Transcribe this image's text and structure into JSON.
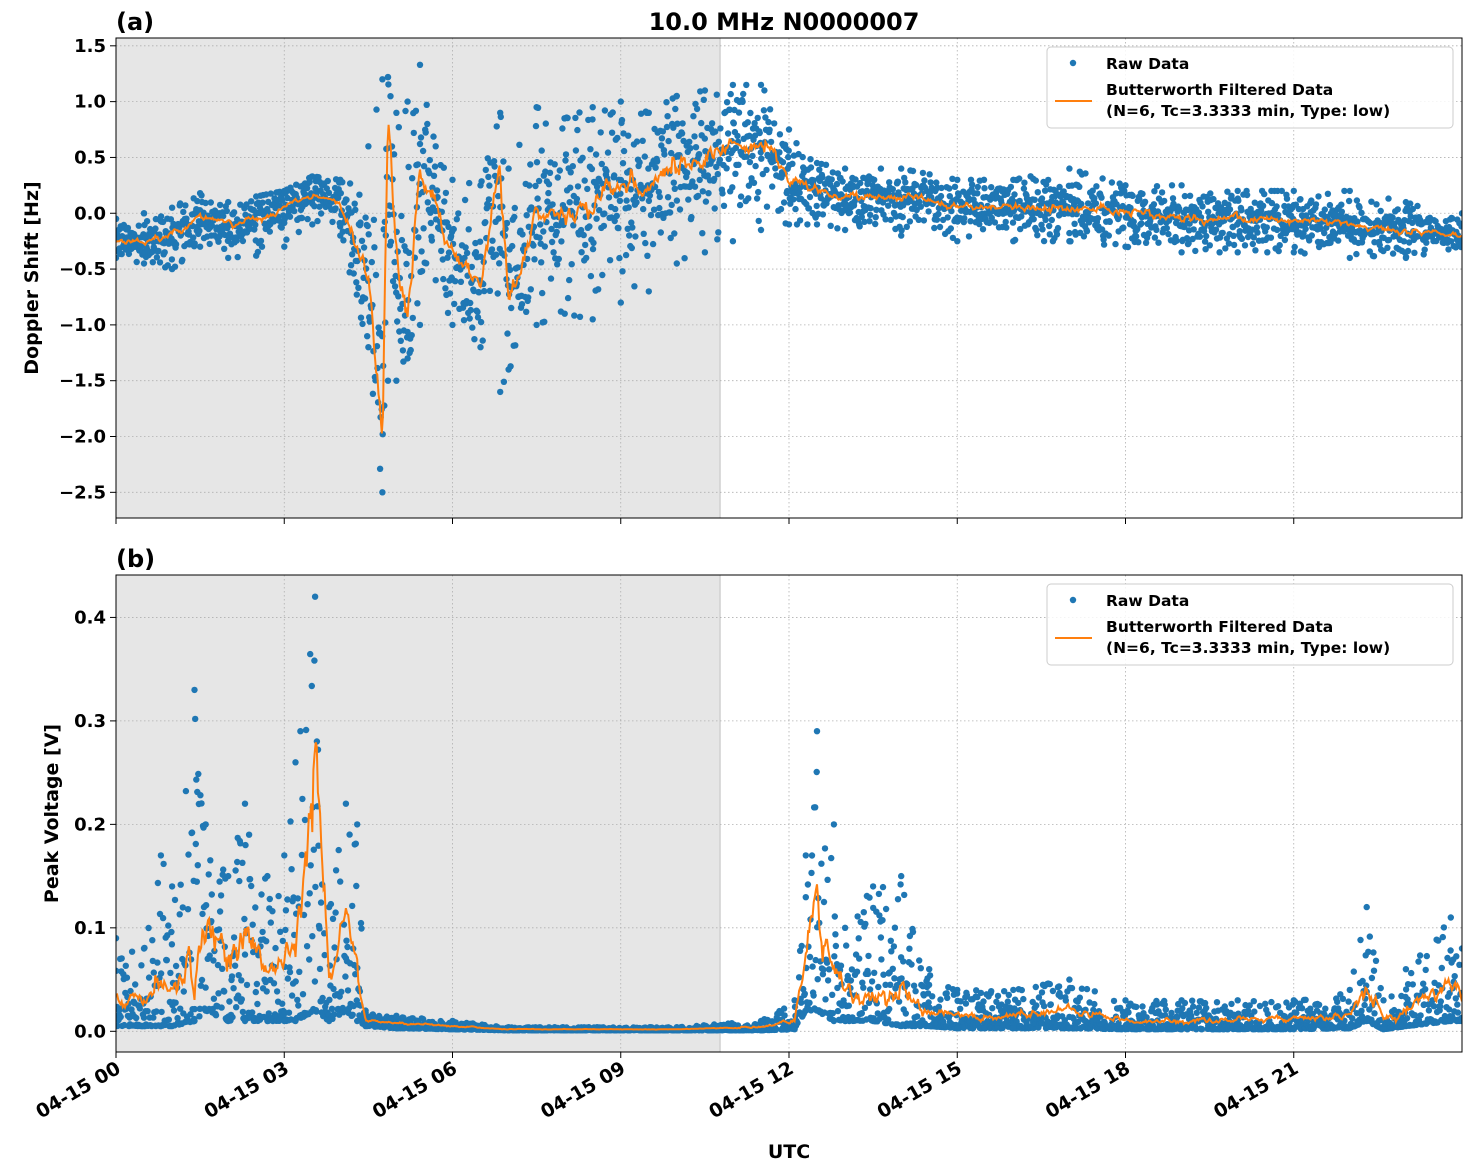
{
  "chart_data": {
    "type": "scatter",
    "title": "10.0 MHz N0000007",
    "xlabel": "UTC",
    "x_unit": "hours since 04-15 00 UTC",
    "xlim": [
      0,
      24
    ],
    "x_ticks": [
      0,
      3,
      6,
      9,
      12,
      15,
      18,
      21
    ],
    "x_tick_labels": [
      "04-15 00",
      "04-15 03",
      "04-15 06",
      "04-15 09",
      "04-15 12",
      "04-15 15",
      "04-15 18",
      "04-15 21"
    ],
    "shaded_interval_hours": [
      0,
      10.77
    ],
    "colors": {
      "raw": "#1f77b4",
      "filtered": "#ff7f0e",
      "shade": "#e6e6e6"
    },
    "panels": [
      {
        "label": "(a)",
        "ylabel": "Doppler Shift [Hz]",
        "ylim": [
          -2.73,
          1.57
        ],
        "y_ticks": [
          1.5,
          1.0,
          0.5,
          0.0,
          -0.5,
          -1.0,
          -1.5,
          -2.0,
          -2.5
        ],
        "y_tick_labels": [
          "1.5",
          "1.0",
          "0.5",
          "0.0",
          "−0.5",
          "−1.0",
          "−1.5",
          "−2.0",
          "−2.5"
        ],
        "legend": {
          "placement": "top-right",
          "raw": "Raw Data",
          "filtered_line1": "Butterworth Filtered Data",
          "filtered_line2": "(N=6, Tc=3.3333 min, Type: low)"
        },
        "series_columns": [
          "hour",
          "filtered",
          "raw_min",
          "raw_max"
        ],
        "series": [
          [
            0,
            -0.25,
            -0.4,
            -0.05
          ],
          [
            0.5,
            -0.25,
            -0.45,
            0.0
          ],
          [
            1.0,
            -0.2,
            -0.5,
            0.05
          ],
          [
            1.5,
            -0.05,
            -0.3,
            0.18
          ],
          [
            2.0,
            -0.1,
            -0.4,
            0.1
          ],
          [
            2.5,
            -0.05,
            -0.38,
            0.15
          ],
          [
            3.0,
            0.05,
            -0.3,
            0.2
          ],
          [
            3.5,
            0.18,
            -0.1,
            0.33
          ],
          [
            4.0,
            0.1,
            -0.2,
            0.3
          ],
          [
            4.5,
            -0.6,
            -1.2,
            0.6
          ],
          [
            4.75,
            -1.9,
            -2.5,
            1.2
          ],
          [
            4.85,
            0.9,
            -1.5,
            1.22
          ],
          [
            5.0,
            -0.5,
            -1.5,
            0.9
          ],
          [
            5.2,
            -0.9,
            -1.3,
            1.0
          ],
          [
            5.42,
            0.3,
            -1.0,
            1.33
          ],
          [
            5.7,
            0.1,
            -0.6,
            0.6
          ],
          [
            6.0,
            -0.4,
            -1.0,
            0.3
          ],
          [
            6.5,
            -0.6,
            -1.2,
            0.25
          ],
          [
            6.85,
            0.4,
            -1.6,
            0.9
          ],
          [
            7.0,
            -0.8,
            -1.4,
            0.4
          ],
          [
            7.5,
            0.0,
            -1.0,
            0.95
          ],
          [
            8.0,
            0.0,
            -0.9,
            0.85
          ],
          [
            8.5,
            0.05,
            -0.95,
            0.95
          ],
          [
            9.0,
            0.25,
            -0.8,
            1.0
          ],
          [
            9.5,
            0.2,
            -0.7,
            0.9
          ],
          [
            10.0,
            0.45,
            -0.45,
            1.05
          ],
          [
            10.5,
            0.5,
            -0.35,
            1.1
          ],
          [
            11.0,
            0.6,
            -0.25,
            1.15
          ],
          [
            11.5,
            0.65,
            -0.15,
            1.15
          ],
          [
            12.0,
            0.3,
            -0.1,
            0.75
          ],
          [
            12.5,
            0.2,
            -0.1,
            0.45
          ],
          [
            13.0,
            0.15,
            -0.15,
            0.4
          ],
          [
            14.0,
            0.15,
            -0.2,
            0.4
          ],
          [
            15.0,
            0.05,
            -0.25,
            0.3
          ],
          [
            16.0,
            0.05,
            -0.25,
            0.3
          ],
          [
            17.0,
            0.05,
            -0.25,
            0.4
          ],
          [
            18.0,
            0.0,
            -0.3,
            0.25
          ],
          [
            19.0,
            -0.05,
            -0.35,
            0.25
          ],
          [
            20.0,
            -0.05,
            -0.35,
            0.2
          ],
          [
            21.0,
            -0.05,
            -0.35,
            0.2
          ],
          [
            22.0,
            -0.1,
            -0.4,
            0.2
          ],
          [
            23.0,
            -0.15,
            -0.4,
            0.1
          ],
          [
            24.0,
            -0.2,
            -0.3,
            0.0
          ]
        ]
      },
      {
        "label": "(b)",
        "ylabel": "Peak Voltage [V]",
        "ylim": [
          -0.02,
          0.441
        ],
        "y_ticks": [
          0.4,
          0.3,
          0.2,
          0.1,
          0.0
        ],
        "y_tick_labels": [
          "0.4",
          "0.3",
          "0.2",
          "0.1",
          "0.0"
        ],
        "legend": {
          "placement": "top-right",
          "raw": "Raw Data",
          "filtered_line1": "Butterworth Filtered Data",
          "filtered_line2": "(N=6, Tc=3.3333 min, Type: low)"
        },
        "series_columns": [
          "hour",
          "filtered",
          "raw_min",
          "raw_max"
        ],
        "series": [
          [
            0,
            0.03,
            0.005,
            0.09
          ],
          [
            0.5,
            0.03,
            0.005,
            0.08
          ],
          [
            0.8,
            0.05,
            0.005,
            0.17
          ],
          [
            1.0,
            0.04,
            0.005,
            0.14
          ],
          [
            1.4,
            0.07,
            0.01,
            0.33
          ],
          [
            1.6,
            0.1,
            0.02,
            0.2
          ],
          [
            2.0,
            0.07,
            0.01,
            0.15
          ],
          [
            2.3,
            0.1,
            0.01,
            0.22
          ],
          [
            2.7,
            0.06,
            0.01,
            0.15
          ],
          [
            3.0,
            0.07,
            0.01,
            0.17
          ],
          [
            3.2,
            0.1,
            0.01,
            0.26
          ],
          [
            3.55,
            0.28,
            0.02,
            0.42
          ],
          [
            3.8,
            0.05,
            0.01,
            0.12
          ],
          [
            4.1,
            0.12,
            0.02,
            0.22
          ],
          [
            4.3,
            0.05,
            0.01,
            0.2
          ],
          [
            4.45,
            0.01,
            0.005,
            0.02
          ],
          [
            5.0,
            0.008,
            0.003,
            0.015
          ],
          [
            6.0,
            0.005,
            0.002,
            0.01
          ],
          [
            7.0,
            0.002,
            0.001,
            0.004
          ],
          [
            10.0,
            0.002,
            0.001,
            0.004
          ],
          [
            11.5,
            0.004,
            0.001,
            0.01
          ],
          [
            12.1,
            0.01,
            0.002,
            0.03
          ],
          [
            12.3,
            0.08,
            0.02,
            0.17
          ],
          [
            12.5,
            0.12,
            0.02,
            0.29
          ],
          [
            12.8,
            0.05,
            0.01,
            0.2
          ],
          [
            13.0,
            0.04,
            0.01,
            0.1
          ],
          [
            13.5,
            0.03,
            0.01,
            0.14
          ],
          [
            14.0,
            0.03,
            0.005,
            0.15
          ],
          [
            14.5,
            0.02,
            0.005,
            0.06
          ],
          [
            15.0,
            0.015,
            0.003,
            0.04
          ],
          [
            16.0,
            0.015,
            0.003,
            0.04
          ],
          [
            17.0,
            0.02,
            0.003,
            0.05
          ],
          [
            18.0,
            0.01,
            0.002,
            0.03
          ],
          [
            19.0,
            0.01,
            0.002,
            0.03
          ],
          [
            20.0,
            0.012,
            0.002,
            0.03
          ],
          [
            21.0,
            0.012,
            0.002,
            0.03
          ],
          [
            22.0,
            0.015,
            0.003,
            0.04
          ],
          [
            22.3,
            0.05,
            0.01,
            0.12
          ],
          [
            22.6,
            0.01,
            0.002,
            0.03
          ],
          [
            23.0,
            0.02,
            0.005,
            0.06
          ],
          [
            23.8,
            0.05,
            0.01,
            0.11
          ],
          [
            24.0,
            0.03,
            0.01,
            0.08
          ]
        ]
      }
    ]
  }
}
